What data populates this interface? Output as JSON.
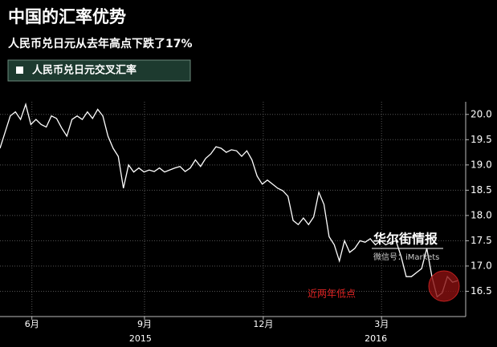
{
  "chart_data": {
    "type": "line",
    "title": "中国的汇率优势",
    "subtitle": "人民币兑日元从去年高点下跌了17%",
    "series": [
      {
        "name": "人民币兑日元交叉汇率",
        "color": "#ffffff",
        "values": [
          19.33,
          19.65,
          19.97,
          20.05,
          19.9,
          20.2,
          19.8,
          19.9,
          19.8,
          19.75,
          19.97,
          19.92,
          19.73,
          19.57,
          19.9,
          19.97,
          19.9,
          20.05,
          19.92,
          20.1,
          19.97,
          19.57,
          19.33,
          19.17,
          18.54,
          19.0,
          18.86,
          18.94,
          18.86,
          18.9,
          18.87,
          18.94,
          18.86,
          18.9,
          18.94,
          18.97,
          18.87,
          18.94,
          19.1,
          18.97,
          19.13,
          19.22,
          19.36,
          19.33,
          19.25,
          19.3,
          19.28,
          19.17,
          19.28,
          19.1,
          18.78,
          18.62,
          18.7,
          18.62,
          18.54,
          18.49,
          18.38,
          17.9,
          17.82,
          17.95,
          17.82,
          17.97,
          18.46,
          18.22,
          17.58,
          17.42,
          17.1,
          17.5,
          17.27,
          17.35,
          17.5,
          17.47,
          17.54,
          17.42,
          17.5,
          17.42,
          17.47,
          17.5,
          17.19,
          16.79,
          16.79,
          16.87,
          16.95,
          17.35,
          16.79,
          16.39,
          16.47,
          16.79,
          16.68,
          16.71
        ]
      }
    ],
    "xlim": [
      0,
      89
    ],
    "xticks": [
      {
        "value": 6.2,
        "label": "6月"
      },
      {
        "value": 28.1,
        "label": "9月"
      },
      {
        "value": 51.2,
        "label": "12月"
      },
      {
        "value": 74.2,
        "label": "3月"
      }
    ],
    "xticks_year": [
      {
        "value": 27.3,
        "label": "2015"
      },
      {
        "value": 73.1,
        "label": "2016"
      }
    ],
    "ylim": [
      16.0,
      20.25
    ],
    "yticks": [
      {
        "value": 16.5,
        "label": "16.5"
      },
      {
        "value": 17,
        "label": "17.0"
      },
      {
        "value": 17.5,
        "label": "17.5"
      },
      {
        "value": 18,
        "label": "18.0"
      },
      {
        "value": 18.5,
        "label": "18.5"
      },
      {
        "value": 19,
        "label": "19.0"
      },
      {
        "value": 19.5,
        "label": "19.5"
      },
      {
        "value": 20,
        "label": "20.0"
      }
    ],
    "grid": true,
    "annotation": "近两年低点",
    "watermark": {
      "title": "华尔街情报",
      "subtitle": "微信号：iMarkets"
    }
  }
}
